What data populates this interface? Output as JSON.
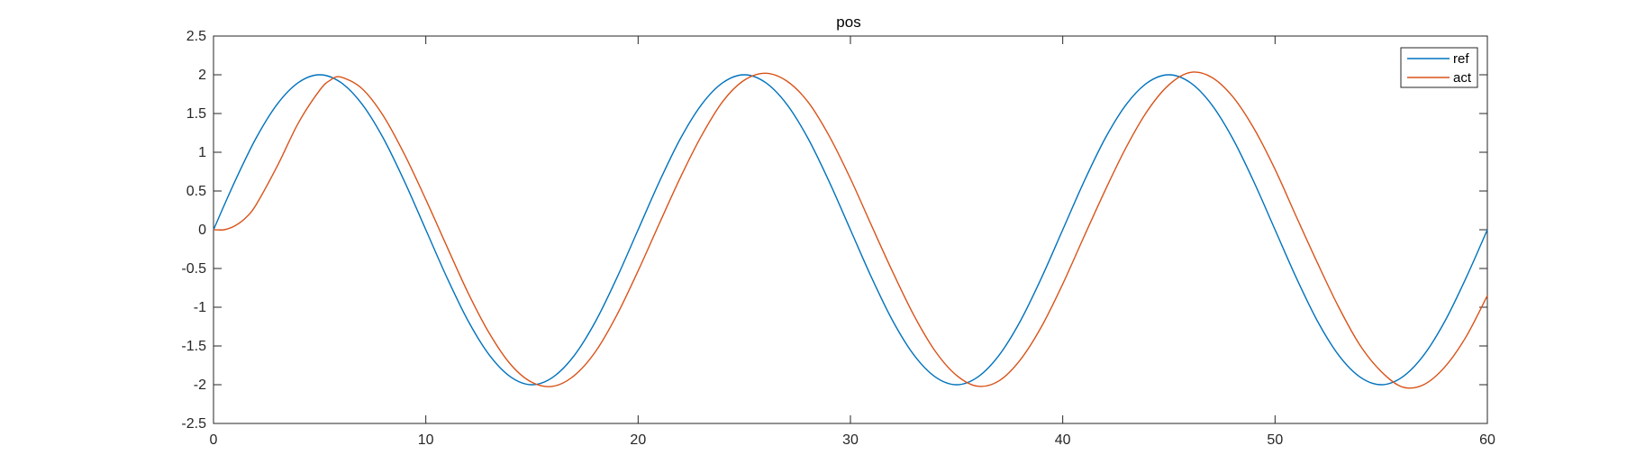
{
  "chart_data": {
    "type": "line",
    "title": "pos",
    "xlabel": "",
    "ylabel": "",
    "xlim": [
      0,
      60
    ],
    "ylim": [
      -2.5,
      2.5
    ],
    "xticks": [
      0,
      10,
      20,
      30,
      40,
      50,
      60
    ],
    "xtick_labels": [
      "0",
      "10",
      "20",
      "30",
      "40",
      "50",
      "60"
    ],
    "yticks": [
      2.5,
      2,
      1.5,
      1,
      0.5,
      0,
      -0.5,
      -1,
      -1.5,
      -2,
      -2.5
    ],
    "ytick_labels": [
      "2.5",
      "2",
      "1.5",
      "1",
      "0.5",
      "0",
      "-0.5",
      "-1",
      "-1.5",
      "-2",
      "-2.5"
    ],
    "grid": false,
    "legend_position": "top-right",
    "series": [
      {
        "name": "ref",
        "color": "#0072BD",
        "x": [
          0,
          1,
          2,
          3,
          4,
          5,
          6,
          7,
          8,
          9,
          10,
          11,
          12,
          13,
          14,
          15,
          16,
          17,
          18,
          19,
          20,
          21,
          22,
          23,
          24,
          25,
          26,
          27,
          28,
          29,
          30,
          31,
          32,
          33,
          34,
          35,
          36,
          37,
          38,
          39,
          40,
          41,
          42,
          43,
          44,
          45,
          46,
          47,
          48,
          49,
          50,
          51,
          52,
          53,
          54,
          55,
          56,
          57,
          58,
          59,
          60
        ],
        "values": [
          0,
          0.62,
          1.18,
          1.62,
          1.9,
          2.0,
          1.9,
          1.62,
          1.18,
          0.62,
          0,
          -0.62,
          -1.18,
          -1.62,
          -1.9,
          -2.0,
          -1.9,
          -1.62,
          -1.18,
          -0.62,
          0,
          0.62,
          1.18,
          1.62,
          1.9,
          2.0,
          1.9,
          1.62,
          1.18,
          0.62,
          0,
          -0.62,
          -1.18,
          -1.62,
          -1.9,
          -2.0,
          -1.9,
          -1.62,
          -1.18,
          -0.62,
          0,
          0.62,
          1.18,
          1.62,
          1.9,
          2.0,
          1.9,
          1.62,
          1.18,
          0.62,
          0,
          -0.62,
          -1.18,
          -1.62,
          -1.9,
          -2.0,
          -1.9,
          -1.62,
          -1.18,
          -0.62,
          0
        ]
      },
      {
        "name": "act",
        "color": "#D95319",
        "x": [
          0,
          0.5,
          1,
          1.5,
          2,
          3,
          4,
          5,
          5.5,
          6,
          7,
          8,
          9,
          10,
          11,
          12,
          13,
          14,
          15,
          16,
          17,
          18,
          19,
          20,
          21,
          22,
          23,
          24,
          25,
          26,
          27,
          28,
          29,
          30,
          31,
          32,
          33,
          34,
          35,
          36,
          37,
          38,
          39,
          40,
          41,
          42,
          43,
          44,
          45,
          46,
          47,
          48,
          49,
          50,
          51,
          52,
          53,
          54,
          55,
          56,
          57,
          58,
          59,
          60
        ],
        "values": [
          0,
          0,
          0.05,
          0.15,
          0.32,
          0.82,
          1.38,
          1.8,
          1.93,
          1.97,
          1.82,
          1.47,
          0.97,
          0.39,
          -0.22,
          -0.82,
          -1.34,
          -1.74,
          -1.97,
          -2.02,
          -1.88,
          -1.57,
          -1.1,
          -0.53,
          0.08,
          0.68,
          1.22,
          1.66,
          1.93,
          2.02,
          1.92,
          1.65,
          1.21,
          0.66,
          0.05,
          -0.55,
          -1.11,
          -1.57,
          -1.88,
          -2.02,
          -1.95,
          -1.68,
          -1.25,
          -0.7,
          -0.09,
          0.51,
          1.07,
          1.54,
          1.87,
          2.03,
          1.97,
          1.72,
          1.31,
          0.78,
          0.17,
          -0.43,
          -1.0,
          -1.49,
          -1.83,
          -2.03,
          -2.0,
          -1.77,
          -1.38,
          -0.85
        ]
      }
    ]
  }
}
